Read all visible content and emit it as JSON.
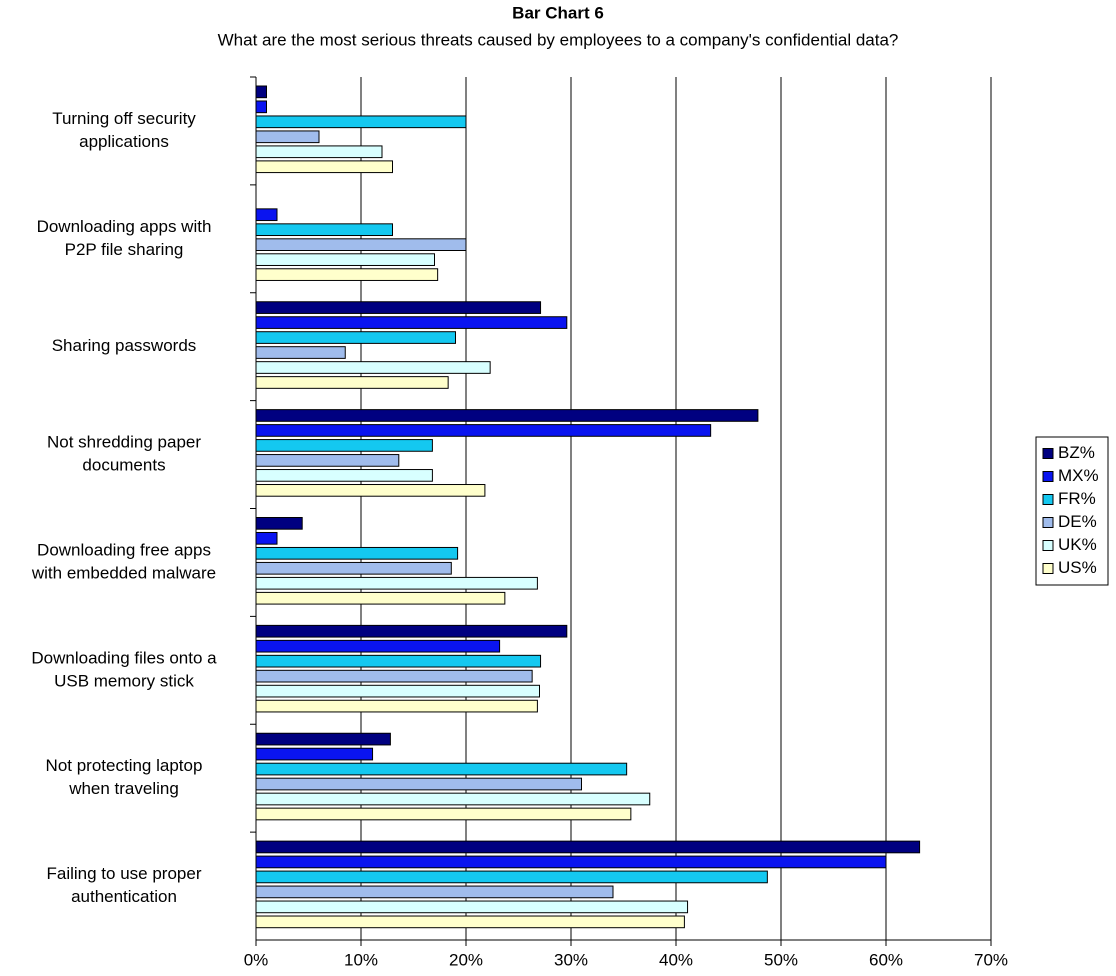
{
  "chart_data": {
    "type": "bar",
    "orientation": "horizontal",
    "title": "Bar Chart 6",
    "subtitle": "What are the most serious threats caused by employees to a company's confidential data?",
    "categories": [
      [
        "Turning off security",
        "applications"
      ],
      [
        "Downloading apps with",
        "P2P file sharing"
      ],
      [
        "Sharing passwords"
      ],
      [
        "Not shredding paper",
        "documents"
      ],
      [
        "Downloading free apps",
        "with embedded malware"
      ],
      [
        "Downloading files onto a",
        "USB memory stick"
      ],
      [
        "Not protecting laptop",
        "when traveling"
      ],
      [
        "Failing to use proper",
        "authentication"
      ]
    ],
    "series": [
      {
        "name": "BZ%",
        "color": "#000080",
        "values": [
          1,
          0,
          27.1,
          47.8,
          4.4,
          29.6,
          12.8,
          63.2
        ]
      },
      {
        "name": "MX%",
        "color": "#0a14f0",
        "values": [
          1,
          2,
          29.6,
          43.3,
          2,
          23.2,
          11.1,
          60
        ]
      },
      {
        "name": "FR%",
        "color": "#14c8f0",
        "values": [
          20,
          13,
          19,
          16.8,
          19.2,
          27.1,
          35.3,
          48.7
        ]
      },
      {
        "name": "DE%",
        "color": "#a0bcec",
        "values": [
          6,
          20,
          8.5,
          13.6,
          18.6,
          26.3,
          31,
          34
        ]
      },
      {
        "name": "UK%",
        "color": "#d8ffff",
        "values": [
          12,
          17,
          22.3,
          16.8,
          26.8,
          27,
          37.5,
          41.1
        ]
      },
      {
        "name": "US%",
        "color": "#ffffcc",
        "values": [
          13,
          17.3,
          18.3,
          21.8,
          23.7,
          26.8,
          35.7,
          40.8
        ]
      }
    ],
    "xlim": [
      0,
      70
    ],
    "xticks": [
      {
        "value": 0,
        "label": "0%"
      },
      {
        "value": 10,
        "label": "10%"
      },
      {
        "value": 20,
        "label": "20%"
      },
      {
        "value": 30,
        "label": "30%"
      },
      {
        "value": 40,
        "label": "40%"
      },
      {
        "value": 50,
        "label": "50%"
      },
      {
        "value": 60,
        "label": "60%"
      },
      {
        "value": 70,
        "label": "70%"
      }
    ],
    "grid": true,
    "legend": "right"
  }
}
